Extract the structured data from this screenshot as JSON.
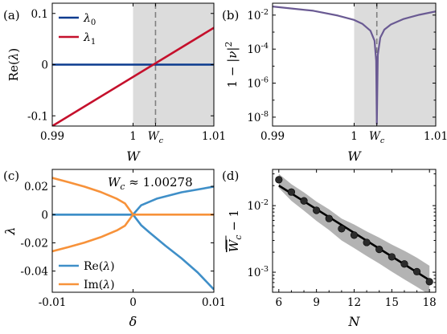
{
  "colors": {
    "lambda0": "#0b3b8f",
    "lambda1": "#c5102c",
    "purple": "#6a5a93",
    "blue": "#3f8fc8",
    "orange": "#f7923a",
    "shade": "#dcdcdc",
    "band": "#b3b3b3",
    "dash": "#808080"
  },
  "chart_data": [
    {
      "panel": "(a)",
      "type": "line",
      "xlabel": "W",
      "ylabel": "Re(λ)",
      "xlim": [
        0.99,
        1.01
      ],
      "ylim": [
        -0.12,
        0.12
      ],
      "x_tick_labels": [
        "0.99",
        "1",
        "W_c",
        "1.01"
      ],
      "y_tick_labels": [
        "0.1",
        "0",
        "-0.1"
      ],
      "shaded_x_range": [
        1.0,
        1.01
      ],
      "vline_x": 1.00278,
      "series": [
        {
          "name": "λ0",
          "x": [
            0.99,
            1.01
          ],
          "y": [
            0.0,
            0.0
          ]
        },
        {
          "name": "λ1",
          "x": [
            0.99,
            1.01
          ],
          "y": [
            -0.12,
            0.072
          ]
        }
      ],
      "legend": "top-left"
    },
    {
      "panel": "(b)",
      "type": "line",
      "xlabel": "W",
      "ylabel": "1 − |ν|²",
      "xlim": [
        0.99,
        1.01
      ],
      "ylim": [
        3e-09,
        0.05
      ],
      "yscale": "log",
      "x_tick_labels": [
        "0.99",
        "1",
        "W_c",
        "1.01"
      ],
      "y_tick_labels": [
        "10⁻²",
        "10⁻⁴",
        "10⁻⁶",
        "10⁻⁸"
      ],
      "shaded_x_range": [
        1.0,
        1.01
      ],
      "vline_x": 1.00278,
      "series": [
        {
          "x": [
            0.99,
            0.995,
            0.998,
            1.0,
            1.001,
            1.002,
            1.0025,
            1.0027,
            1.00278,
            1.0029,
            1.0032,
            1.0037,
            1.0045,
            1.006,
            1.008,
            1.01
          ],
          "y": [
            0.032,
            0.018,
            0.0094,
            0.0052,
            0.0031,
            0.0012,
            0.00031,
            2.1e-05,
            4e-09,
            4.5e-05,
            0.00047,
            0.0014,
            0.0028,
            0.0058,
            0.0105,
            0.0165
          ]
        }
      ]
    },
    {
      "panel": "(c)",
      "type": "line",
      "xlabel": "δ",
      "ylabel": "λ",
      "title": "W_c ≈ 1.00278",
      "xlim": [
        -0.01,
        0.01
      ],
      "ylim": [
        -0.055,
        0.032
      ],
      "x_tick_labels": [
        "-0.01",
        "0",
        "0.01"
      ],
      "y_tick_labels": [
        "0.02",
        "0",
        "-0.02",
        "-0.04"
      ],
      "series": [
        {
          "name": "Re(λ)",
          "x": [
            -0.01,
            -0.006,
            -0.003,
            -0.001,
            0,
            0,
            0.001,
            0.003,
            0.006,
            0.01
          ],
          "y": [
            0.0,
            0.0,
            0.0,
            0.0,
            0.0,
            0.0,
            0.0066,
            0.0114,
            0.0158,
            0.0198
          ]
        },
        {
          "name": "Re(λ) lower",
          "x": [
            -0.01,
            -0.006,
            -0.003,
            -0.001,
            0,
            0.001,
            0.002,
            0.004,
            0.006,
            0.008,
            0.01
          ],
          "y": [
            0.0,
            0.0,
            0.0,
            0.0,
            0.0,
            -0.0075,
            -0.0125,
            -0.022,
            -0.031,
            -0.041,
            -0.053
          ]
        },
        {
          "name": "Im(λ)",
          "x": [
            -0.01,
            -0.008,
            -0.006,
            -0.004,
            -0.002,
            -0.001,
            0,
            0.001,
            0.005,
            0.01
          ],
          "y": [
            0.026,
            0.023,
            0.0198,
            0.016,
            0.0112,
            0.0079,
            0.0,
            0.0,
            0.0,
            0.0
          ]
        },
        {
          "name": "Im(λ) lower",
          "x": [
            -0.01,
            -0.008,
            -0.006,
            -0.004,
            -0.002,
            -0.001,
            0
          ],
          "y": [
            -0.026,
            -0.023,
            -0.0198,
            -0.016,
            -0.0112,
            -0.0079,
            0.0
          ]
        }
      ],
      "legend": "bottom-left"
    },
    {
      "panel": "(d)",
      "type": "scatter",
      "xlabel": "N",
      "ylabel": "W̄_c − 1",
      "xlim": [
        5.5,
        18.5
      ],
      "ylim": [
        0.0005,
        0.035
      ],
      "yscale": "log",
      "x_tick_labels": [
        "6",
        "9",
        "12",
        "15",
        "18"
      ],
      "y_tick_labels": [
        "10⁻²",
        "10⁻³"
      ],
      "series": [
        {
          "name": "data",
          "x": [
            6,
            7,
            8,
            9,
            10,
            11,
            12,
            13,
            14,
            15,
            16,
            17,
            18
          ],
          "y": [
            0.0245,
            0.016,
            0.0118,
            0.0085,
            0.0064,
            0.0045,
            0.0036,
            0.0028,
            0.0022,
            0.0017,
            0.00133,
            0.00102,
            0.00072
          ]
        },
        {
          "name": "fit",
          "x": [
            6,
            18
          ],
          "y": [
            0.02,
            0.00076
          ]
        },
        {
          "name": "band_upper",
          "x": [
            6,
            7,
            8,
            9,
            10,
            11,
            12,
            13,
            14,
            15,
            16,
            17,
            18
          ],
          "y": [
            0.03,
            0.021,
            0.0158,
            0.0115,
            0.0088,
            0.0064,
            0.0052,
            0.0041,
            0.0033,
            0.0026,
            0.0021,
            0.00165,
            0.00125
          ]
        },
        {
          "name": "band_lower",
          "x": [
            6,
            7,
            8,
            9,
            10,
            11,
            12,
            13,
            14,
            15,
            16,
            17,
            18
          ],
          "y": [
            0.0185,
            0.0118,
            0.0084,
            0.0059,
            0.0043,
            0.003,
            0.0023,
            0.00175,
            0.00135,
            0.00102,
            0.00078,
            0.0006,
            0.00046
          ]
        }
      ]
    }
  ]
}
